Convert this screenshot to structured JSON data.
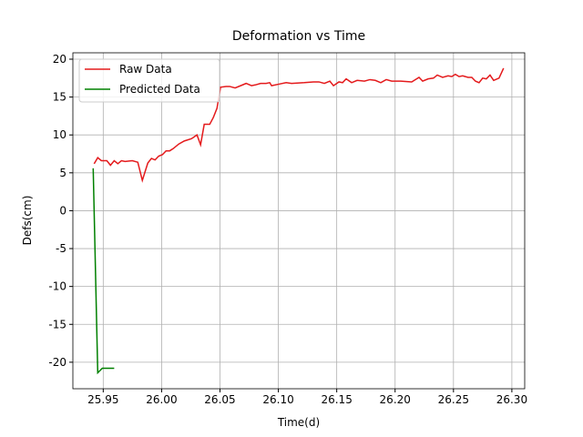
{
  "chart_data": {
    "type": "line",
    "title": "Deformation vs Time",
    "x_label": "Time(d)",
    "y_label": "Defs(cm)",
    "xlim": [
      25.924,
      26.311
    ],
    "ylim": [
      -23.5,
      20.84
    ],
    "xticks": [
      {
        "value": 25.95,
        "label": "25.95"
      },
      {
        "value": 26.0,
        "label": "26.00"
      },
      {
        "value": 26.05,
        "label": "26.05"
      },
      {
        "value": 26.1,
        "label": "26.10"
      },
      {
        "value": 26.15,
        "label": "26.15"
      },
      {
        "value": 26.2,
        "label": "26.20"
      },
      {
        "value": 26.25,
        "label": "26.25"
      },
      {
        "value": 26.3,
        "label": "26.30"
      }
    ],
    "yticks": [
      -20,
      -15,
      -10,
      -5,
      0,
      5,
      10,
      15,
      20
    ],
    "grid": true,
    "legend": "upper left",
    "series": [
      {
        "name": "Raw Data",
        "color": "#e41a1c",
        "x": [
          25.9422,
          25.9453,
          25.9484,
          25.9531,
          25.9562,
          25.9594,
          25.9625,
          25.9656,
          25.9687,
          25.9749,
          25.9796,
          25.9835,
          25.9882,
          25.9913,
          25.9944,
          25.9975,
          26.0007,
          26.0038,
          26.0069,
          26.01,
          26.0147,
          26.0194,
          26.0256,
          26.0303,
          26.0334,
          26.0365,
          26.0412,
          26.0443,
          26.0474,
          26.0505,
          26.0552,
          26.0583,
          26.063,
          26.0677,
          26.0724,
          26.077,
          26.0802,
          26.0848,
          26.0895,
          26.0926,
          26.0942,
          26.1004,
          26.1067,
          26.1113,
          26.1222,
          26.13,
          26.1347,
          26.1394,
          26.1441,
          26.1472,
          26.1519,
          26.155,
          26.1581,
          26.1628,
          26.1675,
          26.1737,
          26.1784,
          26.183,
          26.1877,
          26.1924,
          26.1971,
          26.2049,
          26.2142,
          26.2205,
          26.2236,
          26.2283,
          26.2329,
          26.2361,
          26.2407,
          26.2454,
          26.2485,
          26.2516,
          26.2548,
          26.2579,
          26.2625,
          26.2657,
          26.2688,
          26.2719,
          26.275,
          26.2781,
          26.2813,
          26.2844,
          26.289,
          26.2929
        ],
        "values": [
          6.2,
          7.0,
          6.6,
          6.6,
          6.0,
          6.6,
          6.2,
          6.6,
          6.5,
          6.6,
          6.4,
          4.0,
          6.3,
          6.9,
          6.7,
          7.2,
          7.4,
          7.9,
          7.9,
          8.2,
          8.8,
          9.2,
          9.5,
          10.0,
          8.7,
          11.4,
          11.4,
          12.3,
          13.5,
          16.3,
          16.4,
          16.4,
          16.2,
          16.5,
          16.8,
          16.5,
          16.6,
          16.8,
          16.8,
          16.9,
          16.5,
          16.7,
          16.9,
          16.8,
          16.9,
          17.0,
          17.0,
          16.8,
          17.1,
          16.5,
          17.0,
          16.9,
          17.4,
          16.9,
          17.2,
          17.1,
          17.3,
          17.2,
          16.9,
          17.3,
          17.1,
          17.1,
          17.0,
          17.6,
          17.1,
          17.4,
          17.5,
          17.9,
          17.6,
          17.8,
          17.7,
          18.0,
          17.7,
          17.8,
          17.6,
          17.6,
          17.1,
          16.9,
          17.5,
          17.4,
          17.9,
          17.2,
          17.5,
          18.8
        ]
      },
      {
        "name": "Predicted Data",
        "color": "#008000",
        "x": [
          25.9414,
          25.9453,
          25.9492,
          25.9594
        ],
        "values": [
          5.6,
          -21.4,
          -20.8,
          -20.8
        ]
      }
    ]
  }
}
